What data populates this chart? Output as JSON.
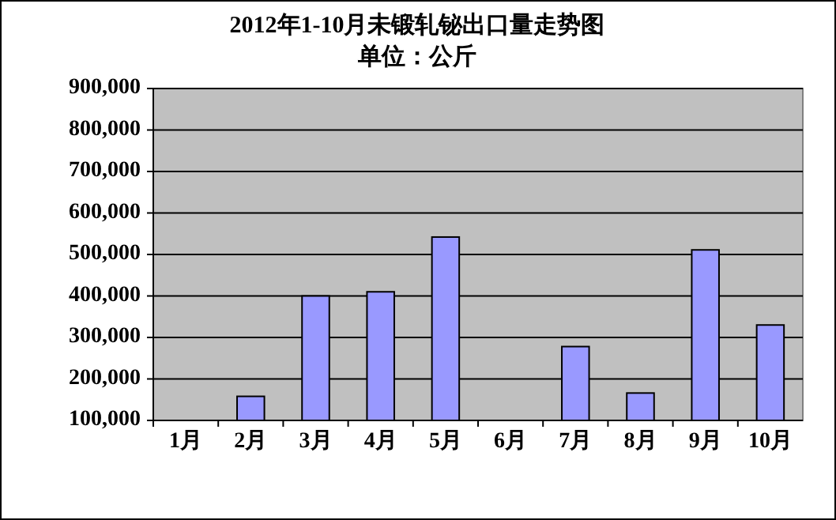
{
  "chart_data": {
    "type": "bar",
    "title": "2012年1-10月未锻轧铋出口量走势图",
    "subtitle": "单位：公斤",
    "categories": [
      "1月",
      "2月",
      "3月",
      "4月",
      "5月",
      "6月",
      "7月",
      "8月",
      "9月",
      "10月"
    ],
    "values": [
      100000,
      158000,
      400000,
      410000,
      542000,
      100000,
      278000,
      166000,
      511000,
      330000
    ],
    "color": "#9999ff",
    "ylim": [
      100000,
      900000
    ],
    "yticks": [
      {
        "value": 100000,
        "label": "100,000"
      },
      {
        "value": 200000,
        "label": "200,000"
      },
      {
        "value": 300000,
        "label": "300,000"
      },
      {
        "value": 400000,
        "label": "400,000"
      },
      {
        "value": 500000,
        "label": "500,000"
      },
      {
        "value": 600000,
        "label": "600,000"
      },
      {
        "value": 700000,
        "label": "700,000"
      },
      {
        "value": 800000,
        "label": "800,000"
      },
      {
        "value": 900000,
        "label": "900,000"
      }
    ],
    "grid": "y"
  }
}
